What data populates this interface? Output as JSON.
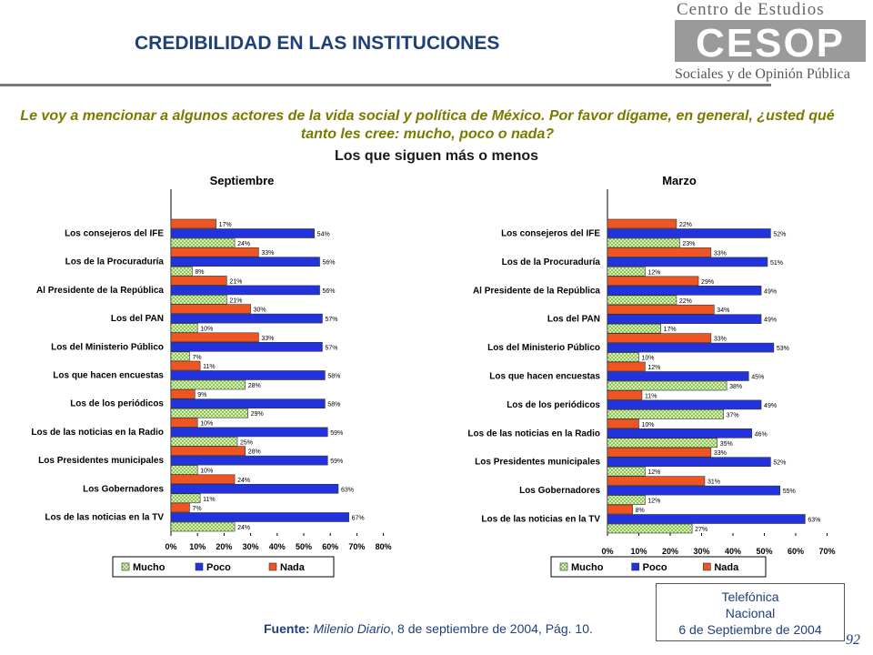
{
  "header": {
    "title": "CREDIBILIDAD EN LAS INSTITUCIONES",
    "logo_top": "Centro de Estudios",
    "logo_mark": "CESOP",
    "logo_bottom": "Sociales y de Opinión Pública"
  },
  "question": "Le voy a mencionar a algunos actores de la vida social y política de México. Por favor dígame, en general, ¿usted qué tanto les cree: mucho, poco o nada?",
  "subtitle": "Los que siguen más o menos",
  "colors": {
    "mucho": "#b8e08a",
    "poco": "#2233dd",
    "nada": "#ee5522",
    "title": "#1f3f7a",
    "question": "#7a7a00"
  },
  "chart_data": [
    {
      "type": "bar",
      "orientation": "horizontal",
      "title": "Septiembre",
      "categories": [
        "Los consejeros del IFE",
        "Los de la Procuraduría",
        "Al Presidente de la República",
        "Los del PAN",
        "Los del Ministerio Público",
        "Los que hacen encuestas",
        "Los de los periódicos",
        "Los de las noticias en la Radio",
        "Los Presidentes municipales",
        "Los Gobernadores",
        "Los de las noticias en la TV"
      ],
      "series": [
        {
          "name": "Nada",
          "values": [
            17,
            33,
            21,
            30,
            33,
            11,
            9,
            10,
            28,
            24,
            7
          ]
        },
        {
          "name": "Poco",
          "values": [
            54,
            56,
            56,
            57,
            57,
            58,
            58,
            59,
            59,
            63,
            67
          ]
        },
        {
          "name": "Mucho",
          "values": [
            24,
            8,
            21,
            10,
            7,
            28,
            29,
            25,
            10,
            11,
            24
          ]
        }
      ],
      "legend_order": [
        "Mucho",
        "Poco",
        "Nada"
      ],
      "xlim": [
        0,
        80
      ],
      "ticks": [
        "0%",
        "10%",
        "20%",
        "30%",
        "40%",
        "50%",
        "60%",
        "70%",
        "80%"
      ]
    },
    {
      "type": "bar",
      "orientation": "horizontal",
      "title": "Marzo",
      "categories": [
        "Los consejeros del IFE",
        "Los de la Procuraduría",
        "Al Presidente de la República",
        "Los del PAN",
        "Los del Ministerio Público",
        "Los que hacen encuestas",
        "Los de los periódicos",
        "Los de las noticias en la Radio",
        "Los Presidentes municipales",
        "Los Gobernadores",
        "Los de las noticias en la TV"
      ],
      "series": [
        {
          "name": "Nada",
          "values": [
            22,
            33,
            29,
            34,
            33,
            12,
            11,
            10,
            33,
            31,
            8
          ]
        },
        {
          "name": "Poco",
          "values": [
            52,
            51,
            49,
            49,
            53,
            45,
            49,
            46,
            52,
            55,
            63
          ]
        },
        {
          "name": "Mucho",
          "values": [
            23,
            12,
            22,
            17,
            10,
            38,
            37,
            35,
            12,
            12,
            27
          ]
        }
      ],
      "legend_order": [
        "Mucho",
        "Poco",
        "Nada"
      ],
      "xlim": [
        0,
        70
      ],
      "ticks": [
        "0%",
        "10%",
        "20%",
        "30%",
        "40%",
        "50%",
        "60%",
        "70%"
      ]
    }
  ],
  "source": {
    "label": "Fuente:",
    "publication": "Milenio Diario",
    "detail": ", 8 de septiembre de 2004, Pág. 10."
  },
  "infobox": {
    "line1": "Telefónica",
    "line2": "Nacional",
    "line3": "6 de Septiembre de 2004"
  },
  "page_number": "92"
}
